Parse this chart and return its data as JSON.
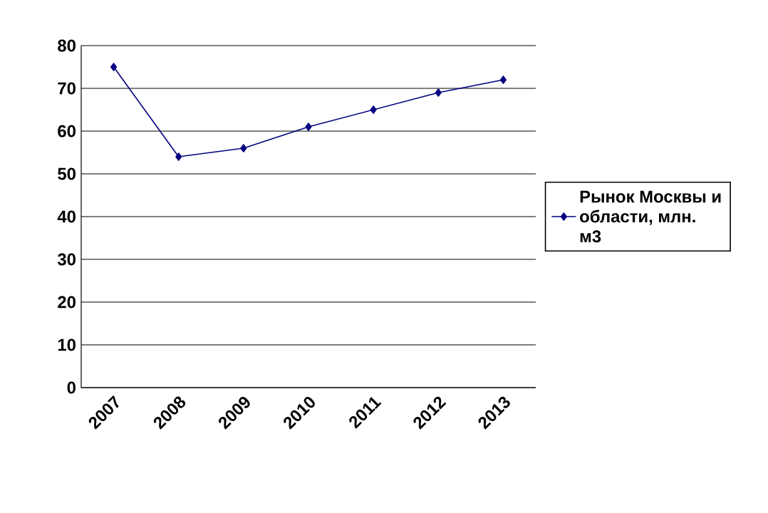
{
  "chart_data": {
    "type": "line",
    "categories": [
      "2007",
      "2008",
      "2009",
      "2010",
      "2011",
      "2012",
      "2013"
    ],
    "series": [
      {
        "name": "Рынок Москвы и области, млн. м3",
        "color": "#000080",
        "values": [
          75,
          54,
          56,
          61,
          65,
          69,
          72
        ]
      }
    ],
    "ylim": [
      0,
      80
    ],
    "yticks": [
      0,
      10,
      20,
      30,
      40,
      50,
      60,
      70,
      80
    ],
    "grid": "y",
    "legend": "right",
    "marker": "diamond",
    "line_style": "solid"
  }
}
